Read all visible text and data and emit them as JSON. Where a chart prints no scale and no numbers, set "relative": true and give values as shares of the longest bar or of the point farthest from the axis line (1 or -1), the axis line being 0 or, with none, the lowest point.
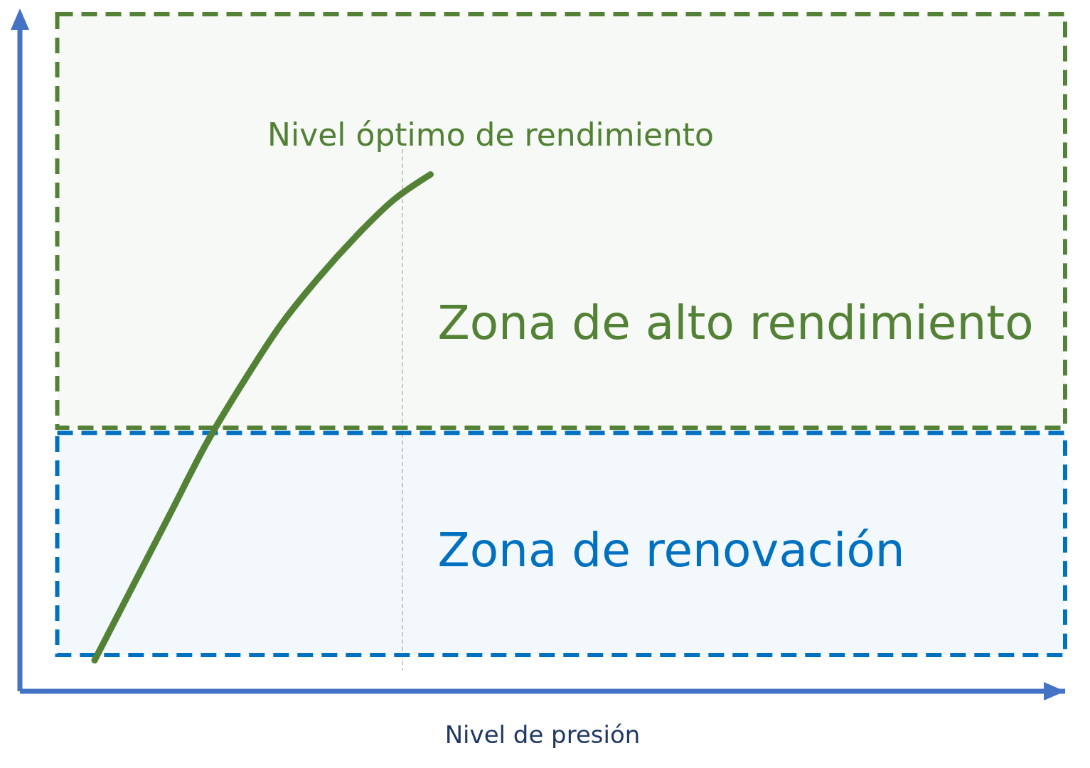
{
  "chart_data": {
    "type": "line",
    "xlabel": "Nivel de presión",
    "relative": true,
    "annotations": [
      "Nivel óptimo de rendimiento"
    ],
    "categories": [
      null,
      null,
      null,
      null,
      null,
      null,
      null,
      null,
      null,
      null,
      null,
      null,
      null,
      null,
      null,
      null,
      null,
      null,
      null,
      null,
      null,
      null,
      null,
      null,
      null,
      null,
      null,
      null,
      null
    ],
    "series": [
      {
        "color": "#538135",
        "values": [
          null,
          null,
          0.06,
          0.2,
          0.34,
          0.48,
          0.6,
          0.71,
          0.8,
          0.88,
          0.95,
          1,
          null,
          null,
          null,
          null,
          null,
          null,
          null,
          null,
          null,
          null,
          null,
          null,
          null,
          null,
          null,
          null,
          null
        ]
      }
    ],
    "bands": [
      {
        "axis": "y",
        "from": 0.51,
        "to": 1.31,
        "label": "Zona de alto rendimiento",
        "color": "#538135"
      },
      {
        "axis": "y",
        "from": 0.07,
        "to": 0.5,
        "label": "Zona de renovación",
        "color": "#0070c0"
      }
    ],
    "marker": "none",
    "line_style": "solid"
  }
}
